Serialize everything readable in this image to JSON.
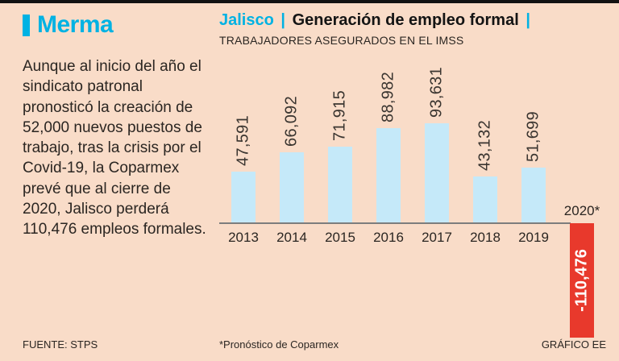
{
  "colors": {
    "accent": "#00b2e3",
    "bar": "#c5e9f9",
    "negative": "#e8392c",
    "background": "#f9dcc8",
    "text": "#2b2622"
  },
  "brand": {
    "title": "Merma"
  },
  "intro_text": "Aunque al inicio del año el sindicato patronal pronosticó la creación de 52,000 nuevos puestos de trabajo, tras la crisis por el Covid-19, la Coparmex prevé que al cierre de 2020, Jalisco perderá 110,476 empleos formales.",
  "header": {
    "region": "Jalisco",
    "sep1": "|",
    "title": "Generación de empleo formal",
    "sep2": "|",
    "subtitle": "TRABAJADORES ASEGURADOS EN EL IMSS"
  },
  "footer": {
    "source": "FUENTE: STPS",
    "note": "*Pronóstico de Coparmex",
    "credit": "GRÁFICO EE"
  },
  "chart_data": {
    "type": "bar",
    "title": "Jalisco | Generación de empleo formal",
    "subtitle": "Trabajadores asegurados en el IMSS",
    "categories": [
      "2013",
      "2014",
      "2015",
      "2016",
      "2017",
      "2018",
      "2019",
      "2020*"
    ],
    "values": [
      47591,
      66092,
      71915,
      88982,
      93631,
      43132,
      51699,
      -110476
    ],
    "labels": [
      "47,591",
      "66,092",
      "71,915",
      "88,982",
      "93,631",
      "43,132",
      "51,699",
      "-110,476"
    ],
    "xlabel": "",
    "ylabel": "Trabajadores asegurados en el IMSS",
    "ylim": [
      -110476,
      93631
    ],
    "grid": false,
    "legend": false,
    "positive_bar_color": "#c5e9f9",
    "negative_bar_color": "#e8392c",
    "note": "*Pronóstico de Coparmex"
  }
}
